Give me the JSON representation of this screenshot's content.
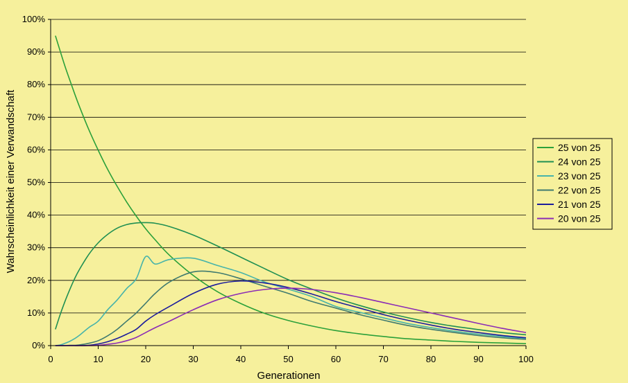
{
  "chart_data": {
    "type": "line",
    "title": "",
    "xlabel": "Generationen",
    "ylabel": "Wahrscheinlichkeit einer Verwandschaft",
    "xlim": [
      0,
      100
    ],
    "ylim": [
      0,
      1
    ],
    "x_ticks": [
      "0",
      "10",
      "20",
      "30",
      "40",
      "50",
      "60",
      "70",
      "80",
      "90",
      "100"
    ],
    "y_ticks": [
      "0%",
      "10%",
      "20%",
      "30%",
      "40%",
      "50%",
      "60%",
      "70%",
      "80%",
      "90%",
      "100%"
    ],
    "grid": "horizontal",
    "legend_position": "right",
    "background": "#f6f09c",
    "x": [
      1,
      2,
      3,
      4,
      5,
      6,
      8,
      10,
      12,
      14,
      16,
      18,
      20,
      22,
      25,
      30,
      35,
      40,
      45,
      50,
      55,
      60,
      65,
      70,
      75,
      80,
      85,
      90,
      95,
      100
    ],
    "series": [
      {
        "name": "25 von 25",
        "color": "#2ba03a",
        "values": [
          0.95,
          0.903,
          0.857,
          0.815,
          0.774,
          0.735,
          0.663,
          0.599,
          0.54,
          0.488,
          0.44,
          0.397,
          0.358,
          0.324,
          0.277,
          0.215,
          0.166,
          0.129,
          0.099,
          0.077,
          0.06,
          0.046,
          0.036,
          0.028,
          0.021,
          0.017,
          0.013,
          0.01,
          0.008,
          0.006
        ]
      },
      {
        "name": "24 von 25",
        "color": "#1f8f52",
        "values": [
          0.05,
          0.095,
          0.135,
          0.171,
          0.204,
          0.232,
          0.279,
          0.315,
          0.341,
          0.36,
          0.371,
          0.376,
          0.377,
          0.375,
          0.365,
          0.339,
          0.306,
          0.271,
          0.236,
          0.202,
          0.173,
          0.146,
          0.123,
          0.103,
          0.086,
          0.071,
          0.059,
          0.049,
          0.04,
          0.033
        ]
      },
      {
        "name": "23 von 25",
        "color": "#46b3aa",
        "values": [
          0.0,
          0.002,
          0.007,
          0.013,
          0.021,
          0.031,
          0.055,
          0.075,
          0.11,
          0.14,
          0.175,
          0.205,
          0.273,
          0.25,
          0.264,
          0.268,
          0.246,
          0.224,
          0.195,
          0.173,
          0.15,
          0.12,
          0.102,
          0.085,
          0.068,
          0.055,
          0.044,
          0.035,
          0.028,
          0.022
        ]
      },
      {
        "name": "22 von 25",
        "color": "#3f7a6f",
        "values": [
          0.0,
          0.0,
          0.0,
          0.001,
          0.001,
          0.002,
          0.007,
          0.015,
          0.03,
          0.05,
          0.075,
          0.1,
          0.13,
          0.16,
          0.195,
          0.226,
          0.224,
          0.205,
          0.182,
          0.16,
          0.135,
          0.115,
          0.095,
          0.078,
          0.062,
          0.05,
          0.04,
          0.031,
          0.024,
          0.019
        ]
      },
      {
        "name": "21 von 25",
        "color": "#1c1c9c",
        "values": [
          0.0,
          0.0,
          0.0,
          0.0,
          0.0,
          0.0,
          0.001,
          0.005,
          0.012,
          0.022,
          0.035,
          0.05,
          0.075,
          0.095,
          0.12,
          0.16,
          0.188,
          0.198,
          0.192,
          0.178,
          0.158,
          0.135,
          0.115,
          0.095,
          0.078,
          0.063,
          0.05,
          0.04,
          0.031,
          0.024
        ]
      },
      {
        "name": "20 von 25",
        "color": "#8b2bb5",
        "values": [
          0.0,
          0.0,
          0.0,
          0.0,
          0.0,
          0.0,
          0.0,
          0.001,
          0.004,
          0.008,
          0.015,
          0.025,
          0.04,
          0.055,
          0.075,
          0.11,
          0.14,
          0.16,
          0.172,
          0.176,
          0.172,
          0.162,
          0.148,
          0.132,
          0.116,
          0.1,
          0.084,
          0.068,
          0.053,
          0.04
        ]
      }
    ]
  }
}
